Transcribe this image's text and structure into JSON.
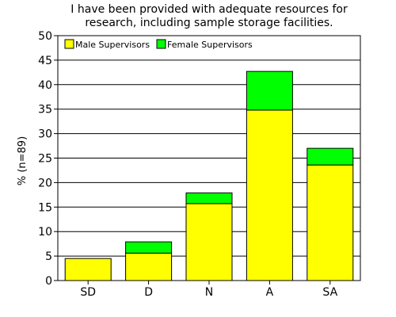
{
  "chart_data": {
    "type": "bar",
    "stacked": true,
    "title_lines": [
      "I have been provided with adequate resources for",
      "research, including sample storage facilities."
    ],
    "xlabel": "",
    "ylabel": "% (n=89)",
    "ylim": [
      0,
      50
    ],
    "yticks": [
      0,
      5,
      10,
      15,
      20,
      25,
      30,
      35,
      40,
      45,
      50
    ],
    "grid": true,
    "legend_position": "top-left",
    "categories": [
      "SD",
      "D",
      "N",
      "A",
      "SA"
    ],
    "series": [
      {
        "name": "Male Supervisors",
        "color": "#ffff00",
        "values": [
          4.5,
          5.6,
          15.7,
          34.8,
          23.6
        ]
      },
      {
        "name": "Female Supervisors",
        "color": "#00ff00",
        "values": [
          0,
          2.3,
          2.2,
          7.9,
          3.4
        ]
      }
    ]
  }
}
